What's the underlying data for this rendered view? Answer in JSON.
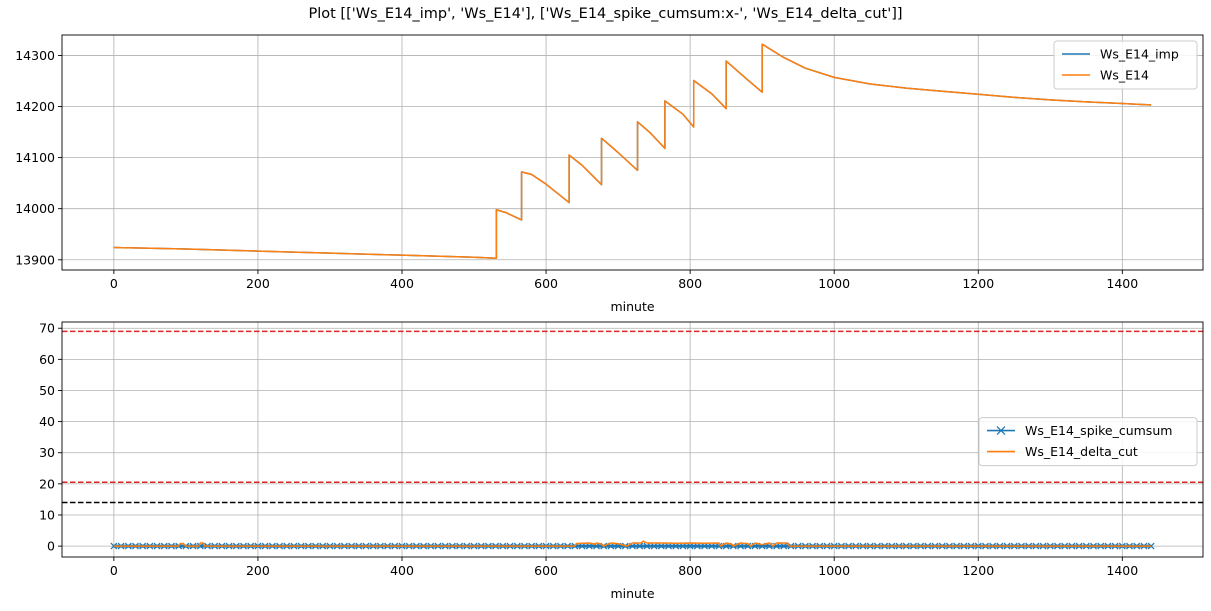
{
  "figure_title": "Plot [['Ws_E14_imp', 'Ws_E14'], ['Ws_E14_spike_cumsum:x-', 'Ws_E14_delta_cut']]",
  "colors": {
    "blue": "#1f77b4",
    "orange": "#ff7f0e",
    "red": "#d62728",
    "black": "#000000",
    "grid": "#b0b0b0"
  },
  "chart_data": [
    {
      "type": "line",
      "title": "",
      "xlabel": "minute",
      "ylabel": "",
      "xlim": [
        -72,
        1512
      ],
      "ylim": [
        13880,
        14340
      ],
      "xticks": [
        0,
        200,
        400,
        600,
        800,
        1000,
        1200,
        1400
      ],
      "yticks": [
        13900,
        14000,
        14100,
        14200,
        14300
      ],
      "grid": true,
      "legend_placement": "upper-right",
      "series": [
        {
          "name": "Ws_E14_imp",
          "color": "#1f77b4",
          "x": [
            0,
            100,
            200,
            300,
            400,
            500,
            531,
            531,
            545,
            566,
            566,
            580,
            600,
            632,
            632,
            650,
            677,
            677,
            700,
            727,
            727,
            745,
            765,
            765,
            790,
            805,
            805,
            830,
            850,
            850,
            880,
            900,
            900,
            930,
            960,
            1000,
            1050,
            1100,
            1150,
            1200,
            1250,
            1300,
            1350,
            1400,
            1440
          ],
          "y": [
            13924,
            13921,
            13917,
            13913,
            13909,
            13905,
            13903,
            13998,
            13992,
            13978,
            14072,
            14067,
            14048,
            14012,
            14105,
            14085,
            14047,
            14138,
            14110,
            14075,
            14170,
            14148,
            14118,
            14211,
            14185,
            14160,
            14251,
            14225,
            14196,
            14289,
            14252,
            14228,
            14322,
            14296,
            14275,
            14257,
            14244,
            14236,
            14230,
            14224,
            14218,
            14213,
            14209,
            14206,
            14203
          ]
        },
        {
          "name": "Ws_E14",
          "color": "#ff7f0e",
          "x": [
            0,
            100,
            200,
            300,
            400,
            500,
            531,
            531,
            545,
            566,
            566,
            580,
            600,
            632,
            632,
            650,
            677,
            677,
            700,
            727,
            727,
            745,
            765,
            765,
            790,
            805,
            805,
            830,
            850,
            850,
            880,
            900,
            900,
            930,
            960,
            1000,
            1050,
            1100,
            1150,
            1200,
            1250,
            1300,
            1350,
            1400,
            1440
          ],
          "y": [
            13924,
            13921,
            13917,
            13913,
            13909,
            13905,
            13903,
            13998,
            13992,
            13978,
            14072,
            14067,
            14048,
            14012,
            14105,
            14085,
            14047,
            14138,
            14110,
            14075,
            14170,
            14148,
            14118,
            14211,
            14185,
            14160,
            14251,
            14225,
            14196,
            14289,
            14252,
            14228,
            14322,
            14296,
            14275,
            14257,
            14244,
            14236,
            14230,
            14224,
            14218,
            14213,
            14209,
            14206,
            14203
          ]
        }
      ]
    },
    {
      "type": "line",
      "title": "",
      "xlabel": "minute",
      "ylabel": "",
      "xlim": [
        -72,
        1512
      ],
      "ylim": [
        -3.5,
        72
      ],
      "xticks": [
        0,
        200,
        400,
        600,
        800,
        1000,
        1200,
        1400
      ],
      "yticks": [
        0,
        10,
        20,
        30,
        40,
        50,
        60,
        70
      ],
      "grid": true,
      "legend_placement": "center-right",
      "series": [
        {
          "name": "Ws_E14_spike_cumsum",
          "color": "#1f77b4",
          "marker": "x",
          "x": [
            0,
            1440
          ],
          "y": [
            0,
            0
          ]
        },
        {
          "name": "Ws_E14_delta_cut",
          "color": "#ff7f0e",
          "x": [
            0,
            90,
            92,
            96,
            100,
            118,
            120,
            124,
            126,
            640,
            642,
            650,
            660,
            668,
            670,
            676,
            680,
            690,
            700,
            712,
            720,
            732,
            735,
            740,
            760,
            780,
            800,
            820,
            840,
            842,
            850,
            858,
            860,
            870,
            880,
            884,
            890,
            900,
            910,
            915,
            920,
            935,
            938,
            1440
          ],
          "y": [
            0,
            0,
            0.8,
            0.8,
            0,
            0,
            1.0,
            1.0,
            0,
            0,
            0.8,
            0.9,
            1.0,
            0.6,
            1.0,
            0.7,
            0,
            1.0,
            0.8,
            0,
            1.0,
            1.0,
            1.6,
            1.0,
            1.0,
            0.9,
            1.0,
            0.9,
            1.0,
            0,
            1.0,
            0.6,
            0,
            1.0,
            0.8,
            0,
            1.0,
            0.5,
            1.0,
            0,
            1.0,
            1.0,
            0,
            0
          ]
        }
      ],
      "hlines": [
        {
          "y": 69,
          "color": "#d62728",
          "style": "dashed"
        },
        {
          "y": 20.5,
          "color": "#d62728",
          "style": "dashed"
        },
        {
          "y": 14,
          "color": "#000000",
          "style": "dashed"
        }
      ]
    }
  ]
}
